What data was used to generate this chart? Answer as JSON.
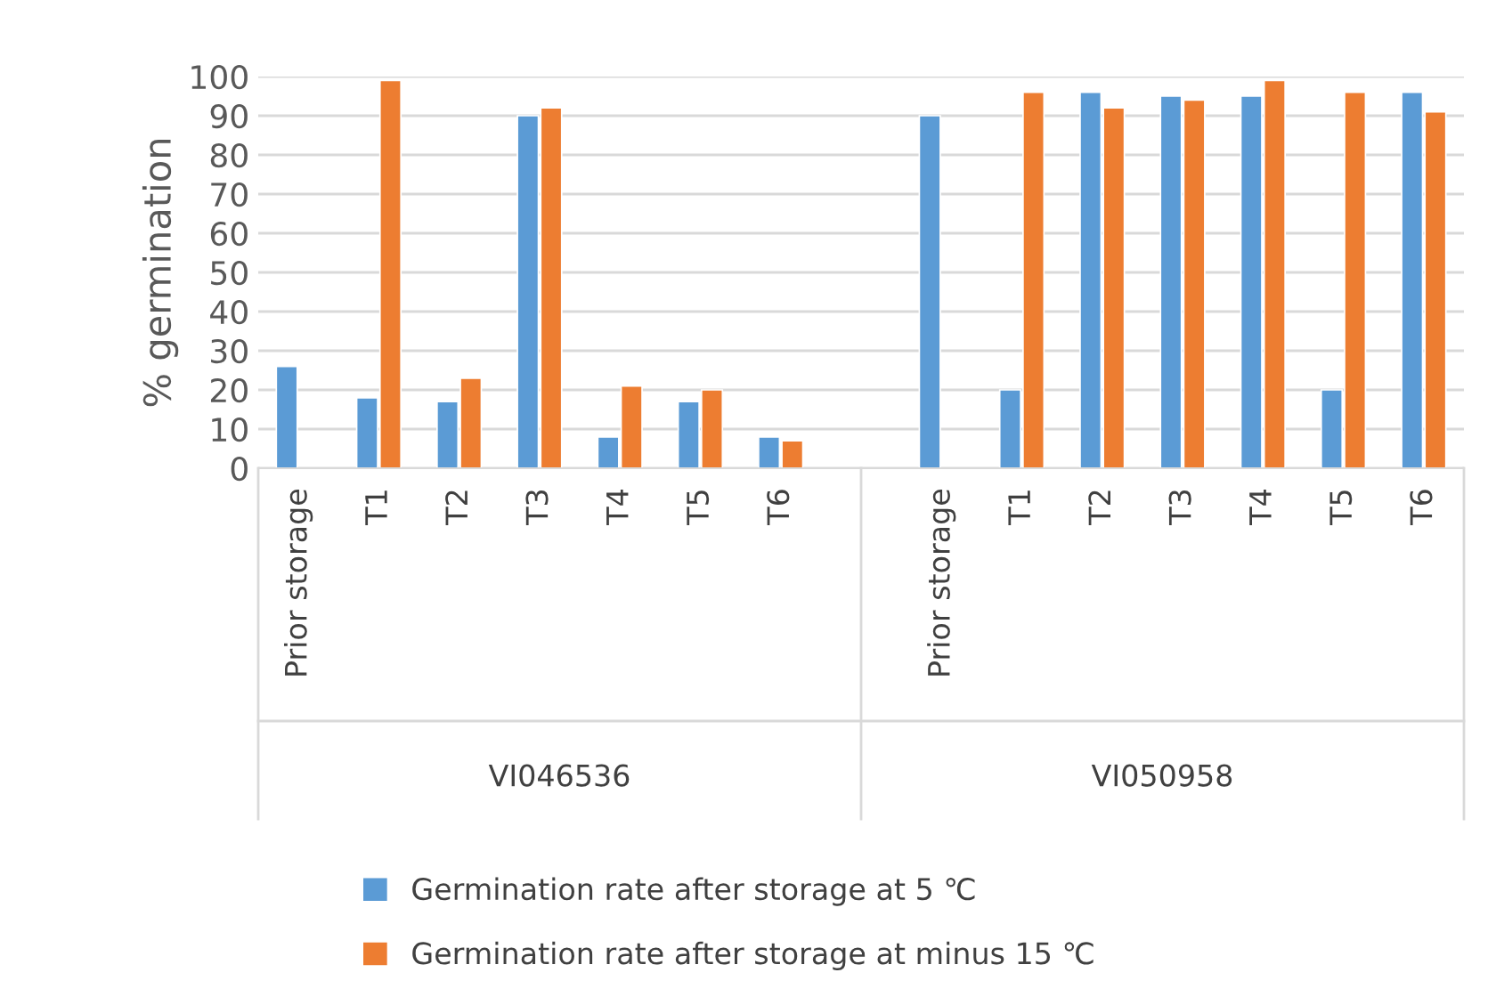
{
  "chart_data": {
    "type": "bar",
    "ylabel": "% germination",
    "categories": [
      "Prior storage",
      "T1",
      "T2",
      "T3",
      "T4",
      "T5",
      "T6",
      null,
      "Prior storage",
      "T1",
      "T2",
      "T3",
      "T4",
      "T5",
      "T6"
    ],
    "series": [
      {
        "name": "Germination rate after storage at 5 ℃",
        "color": "#5b9bd5",
        "values": [
          26,
          18,
          17,
          90,
          8,
          17,
          8,
          null,
          90,
          20,
          96,
          95,
          95,
          20,
          96
        ]
      },
      {
        "name": "Germination rate after storage at minus 15 ℃",
        "color": "#ed7d31",
        "values": [
          null,
          99,
          23,
          92,
          21,
          20,
          7,
          null,
          null,
          96,
          92,
          94,
          99,
          96,
          91
        ]
      }
    ],
    "annotations": [
      "VI046536",
      "VI050958"
    ],
    "ylim": [
      0,
      100
    ],
    "yticks": [
      0,
      10,
      20,
      30,
      40,
      50,
      60,
      70,
      80,
      90,
      100
    ],
    "grid": "y",
    "legend": "bottom"
  }
}
